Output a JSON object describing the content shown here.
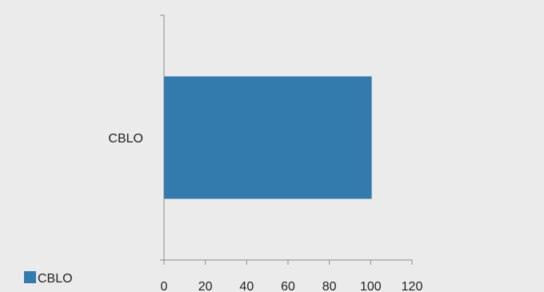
{
  "chart_data": {
    "type": "bar",
    "orientation": "horizontal",
    "categories": [
      "CBLO"
    ],
    "series": [
      {
        "name": "CBLO",
        "values": [
          100.5
        ],
        "color": "#337AAD"
      }
    ],
    "xlim": [
      0,
      120
    ],
    "xticks": [
      0,
      20,
      40,
      60,
      80,
      100,
      120
    ],
    "xtick_labels": [
      "0",
      "20",
      "40",
      "60",
      "80",
      "100",
      "120"
    ],
    "title": "",
    "xlabel": "",
    "ylabel": "",
    "grid": false,
    "legend": {
      "position": "bottom-left",
      "entries": [
        "CBLO"
      ]
    },
    "colors": {
      "background": "#EBEBEB",
      "axis": "#8C8C8C",
      "bar": "#337AAD"
    }
  }
}
